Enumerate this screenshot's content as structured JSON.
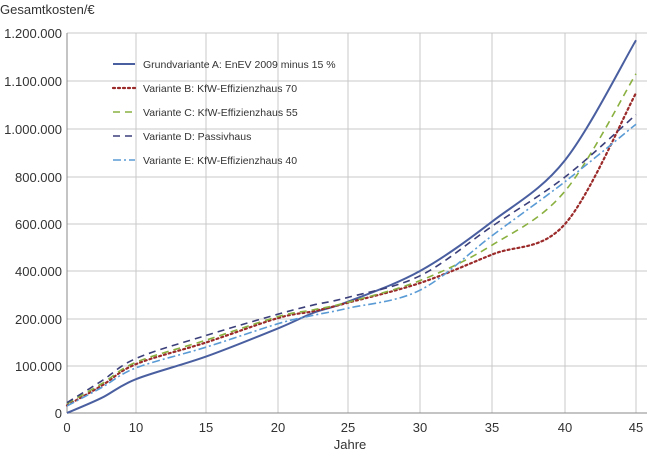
{
  "chart_data": {
    "type": "line",
    "title": "",
    "ylabel": "Gesamtkosten/€",
    "xlabel": "Jahre",
    "xlim": [
      0,
      45
    ],
    "ylim": [
      0,
      1200000
    ],
    "x_ticks": [
      0,
      10,
      15,
      20,
      25,
      30,
      35,
      40,
      45
    ],
    "y_ticks": [
      0,
      100000,
      200000,
      400000,
      600000,
      800000,
      1000000,
      1100000,
      1200000
    ],
    "x_tick_labels": [
      "0",
      "10",
      "15",
      "20",
      "25",
      "30",
      "35",
      "40",
      "45"
    ],
    "y_tick_labels": [
      "0",
      "100.000",
      "200.000",
      "400.000",
      "600.000",
      "800.000",
      "1.000.000",
      "1.100.000",
      "1.200.000"
    ],
    "grid": true,
    "legend_position": "top-left",
    "x": [
      0,
      5,
      10,
      15,
      20,
      22.5,
      25,
      30,
      35,
      40,
      45
    ],
    "series": [
      {
        "name": "Grundvariante A: EnEV 2009 minus 15 %",
        "color": "#4a5fa0",
        "dash": "solid",
        "values": [
          0,
          32000,
          72000,
          120000,
          180000,
          225000,
          272000,
          400000,
          610000,
          870000,
          1185000
        ]
      },
      {
        "name": "Variante B: KfW-Effizienzhaus 70",
        "color": "#9b2a2a",
        "dash": "dotted",
        "values": [
          16000,
          58000,
          104000,
          150000,
          204000,
          232000,
          268000,
          350000,
          470000,
          600000,
          1075000
        ]
      },
      {
        "name": "Variante C: KfW-Effizienzhaus 55",
        "color": "#8ab040",
        "dash": "dashed",
        "values": [
          20000,
          62000,
          108000,
          155000,
          210000,
          238000,
          270000,
          360000,
          510000,
          740000,
          1115000
        ]
      },
      {
        "name": "Variante D: Passivhaus",
        "color": "#3b3f7a",
        "dash": "dashed",
        "values": [
          22000,
          68000,
          116000,
          165000,
          220000,
          258000,
          290000,
          380000,
          590000,
          800000,
          1030000
        ]
      },
      {
        "name": "Variante E: KfW-Effizienzhaus 40",
        "color": "#5a9bd5",
        "dash": "dashdot",
        "values": [
          15000,
          54000,
          96000,
          140000,
          190000,
          215000,
          245000,
          320000,
          550000,
          780000,
          1010000
        ]
      }
    ]
  }
}
